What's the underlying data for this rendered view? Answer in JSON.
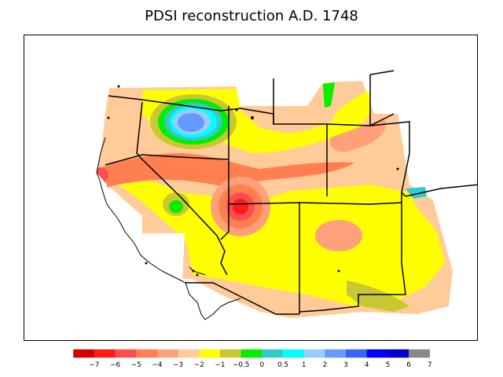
{
  "title": "PDSI reconstruction A.D. 1748",
  "legend": {
    "colors": [
      "#d40000",
      "#ff1a1a",
      "#ff4d4d",
      "#ff7f50",
      "#ffa07a",
      "#ffcc99",
      "#ffff00",
      "#c8c832",
      "#00ee00",
      "#33cccc",
      "#00ffff",
      "#99ccff",
      "#6699ff",
      "#3366ff",
      "#0000ff",
      "#0000cc",
      "#888888"
    ],
    "labels": [
      "−7",
      "−6",
      "−5",
      "−4",
      "−3",
      "−2",
      "−1",
      "−0.5",
      "0",
      "0.5",
      "1",
      "2",
      "3",
      "4",
      "5",
      "6",
      "7"
    ]
  },
  "map": {
    "background_color": "#ffffff",
    "base_fill": "#ffcc99",
    "colors": {
      "red": "#ff1a1a",
      "red_mid": "#ff4d4d",
      "salmon": "#ff7f50",
      "light_salmon": "#ffa07a",
      "peach": "#ffcc99",
      "yellow": "#ffff00",
      "olive": "#c8c832",
      "green": "#00ee00",
      "teal": "#33cccc",
      "cyan": "#00ffff",
      "light_blue": "#99ccff",
      "blue": "#6699ff"
    }
  }
}
